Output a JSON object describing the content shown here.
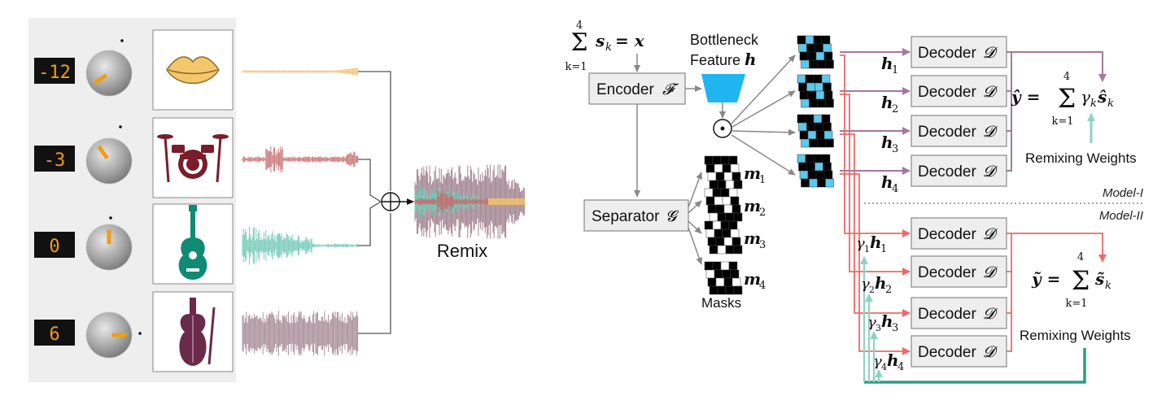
{
  "left_panel": {
    "knobs": [
      {
        "value": "-12",
        "instrument": "lips-icon",
        "stem_color": "#f0c070"
      },
      {
        "value": "-3",
        "instrument": "drums-icon",
        "stem_color": "#c56b6b"
      },
      {
        "value": "0",
        "instrument": "guitar-icon",
        "stem_color": "#6cc6b4"
      },
      {
        "value": "6",
        "instrument": "violin-icon",
        "stem_color": "#a1848f"
      }
    ],
    "remix_label": "Remix",
    "sum_symbol": "⊕"
  },
  "right_panel": {
    "sum_top": {
      "sigma": "Σ",
      "upper": "4",
      "lower": "k=1",
      "body": "s",
      "sub": "k",
      "equals": "= x"
    },
    "bottleneck_label_line1": "Bottleneck",
    "bottleneck_label_line2": "Feature",
    "bottleneck_symbol": "h",
    "encoder_label": "Encoder",
    "encoder_symbol": "𝓕",
    "separator_label": "Separator",
    "separator_symbol": "𝓖",
    "hadamard_symbol": "⊙",
    "masks_label": "Masks",
    "mask_labels": [
      {
        "sym": "m",
        "sub": "1"
      },
      {
        "sym": "m",
        "sub": "2"
      },
      {
        "sym": "m",
        "sub": "3"
      },
      {
        "sym": "m",
        "sub": "4"
      }
    ],
    "h_labels": [
      {
        "sym": "h",
        "sub": "1"
      },
      {
        "sym": "h",
        "sub": "2"
      },
      {
        "sym": "h",
        "sub": "3"
      },
      {
        "sym": "h",
        "sub": "4"
      }
    ],
    "gamma_h_labels": [
      {
        "g": "γ",
        "gsub": "1",
        "sym": "h",
        "sub": "1"
      },
      {
        "g": "γ",
        "gsub": "2",
        "sym": "h",
        "sub": "2"
      },
      {
        "g": "γ",
        "gsub": "3",
        "sym": "h",
        "sub": "3"
      },
      {
        "g": "γ",
        "gsub": "4",
        "sym": "h",
        "sub": "4"
      }
    ],
    "decoder_label": "Decoder",
    "decoder_symbol": "𝓓",
    "model1_label": "Model-I",
    "model2_label": "Model-II",
    "eq1": {
      "lhs": "ŷ =",
      "sigma": "Σ",
      "upper": "4",
      "lower": "k=1",
      "body": "γ",
      "body_sub": "k",
      "s": "ŝ",
      "s_sub": "k"
    },
    "eq2": {
      "lhs": "ỹ =",
      "sigma": "Σ",
      "upper": "4",
      "lower": "k=1",
      "s": "s̃",
      "s_sub": "k"
    },
    "remix_weights_1": "Remixing Weights",
    "remix_weights_2": "Remixing Weights"
  },
  "colors": {
    "purple_arrow": "#a5799b",
    "red_arrow": "#ee6a6a",
    "teal_light": "#8fd2c4",
    "teal_dark": "#2f9c80",
    "box_fill": "#eeeeee",
    "box_stroke": "#888888",
    "bottleneck_blue": "#1fb5f0",
    "mask_cell": "#5bc9ee"
  }
}
